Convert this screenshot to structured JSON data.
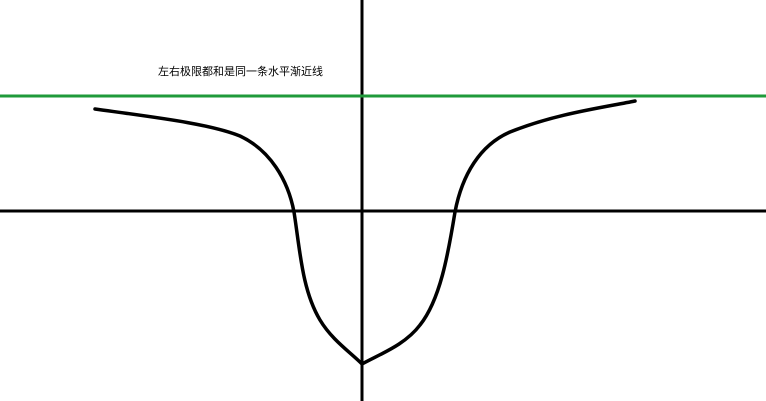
{
  "diagram": {
    "annotation": "左右极限都和是同一条水平渐近线",
    "colors": {
      "axes": "#000000",
      "curve": "#000000",
      "asymptote": "#1f9a3a",
      "background": "#ffffff"
    }
  }
}
